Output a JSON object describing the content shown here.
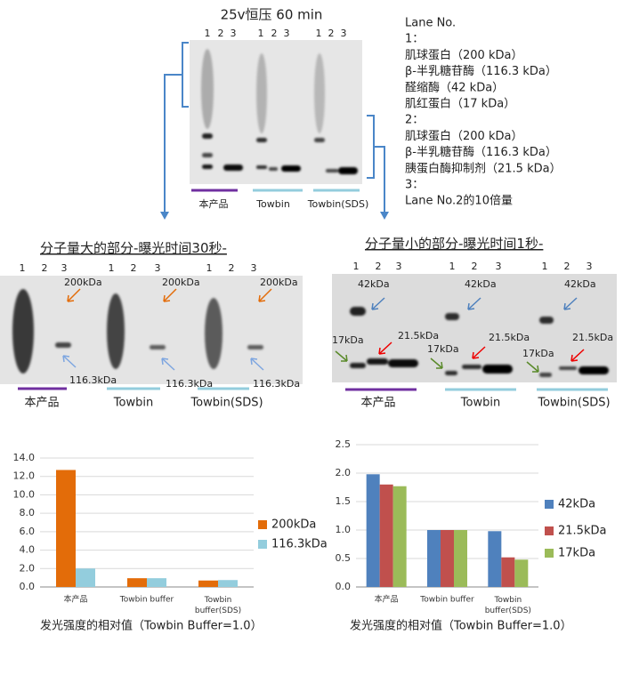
{
  "figure": {
    "top_title": "25v恒压 60 min",
    "lanes": [
      "1",
      "2",
      "3"
    ],
    "groups": [
      "本产品",
      "Towbin",
      "Towbin(SDS)"
    ],
    "lane_notes": [
      "Lane No.",
      "1：",
      "肌球蛋白（200 kDa）",
      "β-半乳糖苷酶（116.3 kDa）",
      "醛缩酶（42 kDa）",
      "肌红蛋白（17 kDa）",
      "2：",
      "肌球蛋白（200 kDa）",
      "β-半乳糖苷酶（116.3 kDa）",
      "胰蛋白酶抑制剂（21.5 kDa）",
      "3：",
      "Lane No.2的10倍量"
    ],
    "left_title_main": "分子量大的部分",
    "left_title_rest": "-曝光时间30秒-",
    "right_title_main": "分子量小的部分",
    "right_title_rest": "-曝光时间1秒-",
    "left_markers": [
      "200kDa",
      "116.3kDa"
    ],
    "right_markers": [
      "42kDa",
      "21.5kDa",
      "17kDa"
    ]
  },
  "chart_data": [
    {
      "type": "bar",
      "caption": "发光强度的相对值（Towbin Buffer=1.0）",
      "categories": [
        "本产品",
        "Towbin buffer",
        "Towbin buffer(SDS)"
      ],
      "series": [
        {
          "name": "200kDa",
          "color": "#e36c09",
          "values": [
            12.7,
            0.95,
            0.7
          ]
        },
        {
          "name": "116.3kDa",
          "color": "#93cddd",
          "values": [
            2.0,
            0.95,
            0.75
          ]
        }
      ],
      "ylim": [
        0,
        14
      ],
      "yticks": [
        {
          "value": 0,
          "label": "0.0"
        },
        {
          "value": 2,
          "label": "2.0"
        },
        {
          "value": 4,
          "label": "4.0"
        },
        {
          "value": 6,
          "label": "6.0"
        },
        {
          "value": 8,
          "label": "8.0"
        },
        {
          "value": 10,
          "label": "10.0"
        },
        {
          "value": 12,
          "label": "12.0"
        },
        {
          "value": 14,
          "label": "14.0"
        }
      ],
      "grid": true,
      "legend": "right"
    },
    {
      "type": "bar",
      "caption": "发光强度的相对值（Towbin Buffer=1.0）",
      "categories": [
        "本产品",
        "Towbin buffer",
        "Towbin buffer(SDS)"
      ],
      "series": [
        {
          "name": "42kDa",
          "color": "#4f81bd",
          "values": [
            1.98,
            1.0,
            0.98
          ]
        },
        {
          "name": "21.5kDa",
          "color": "#c0504d",
          "values": [
            1.8,
            1.0,
            0.52
          ]
        },
        {
          "name": "17kDa",
          "color": "#9bbb59",
          "values": [
            1.77,
            1.0,
            0.48
          ]
        }
      ],
      "ylim": [
        0,
        2.5
      ],
      "yticks": [
        {
          "value": 0,
          "label": "0.0"
        },
        0.5,
        {
          "value": 1,
          "label": "1.0"
        },
        1.5,
        {
          "value": 2,
          "label": "2.0"
        },
        2.5
      ],
      "grid": true,
      "legend": "right"
    }
  ]
}
